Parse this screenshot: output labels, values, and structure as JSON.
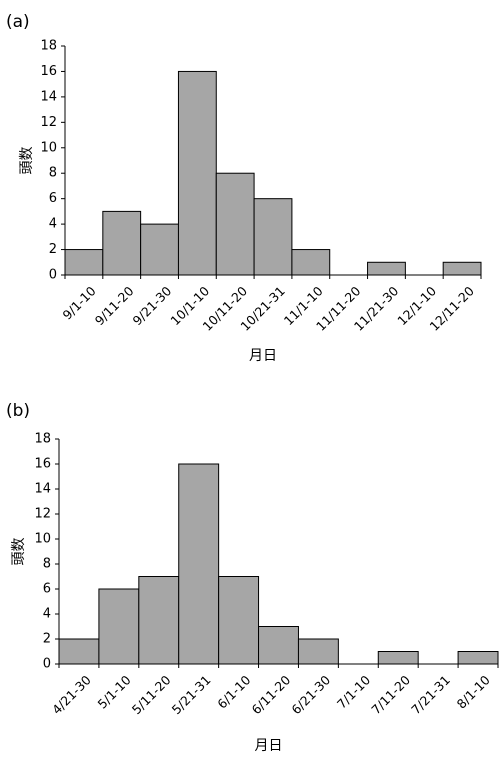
{
  "chart_data": [
    {
      "type": "bar",
      "panel_label": "(a)",
      "xlabel": "月日",
      "ylabel": "頭数",
      "ylim": [
        0,
        18
      ],
      "yticks": [
        0,
        2,
        4,
        6,
        8,
        10,
        12,
        14,
        16,
        18
      ],
      "grid": false,
      "categories": [
        "9/1-10",
        "9/11-20",
        "9/21-30",
        "10/1-10",
        "10/11-20",
        "10/21-31",
        "11/1-10",
        "11/11-20",
        "11/21-30",
        "12/1-10",
        "12/11-20"
      ],
      "values": [
        2,
        5,
        4,
        16,
        8,
        6,
        2,
        0,
        1,
        0,
        1
      ],
      "bar_color": "#a6a6a6"
    },
    {
      "type": "bar",
      "panel_label": "(b)",
      "xlabel": "月日",
      "ylabel": "頭数",
      "ylim": [
        0,
        18
      ],
      "yticks": [
        0,
        2,
        4,
        6,
        8,
        10,
        12,
        14,
        16,
        18
      ],
      "grid": false,
      "categories": [
        "4/21-30",
        "5/1-10",
        "5/11-20",
        "5/21-31",
        "6/1-10",
        "6/11-20",
        "6/21-30",
        "7/1-10",
        "7/11-20",
        "7/21-31",
        "8/1-10"
      ],
      "values": [
        2,
        6,
        7,
        16,
        7,
        3,
        2,
        0,
        1,
        0,
        1
      ],
      "bar_color": "#a6a6a6"
    }
  ]
}
